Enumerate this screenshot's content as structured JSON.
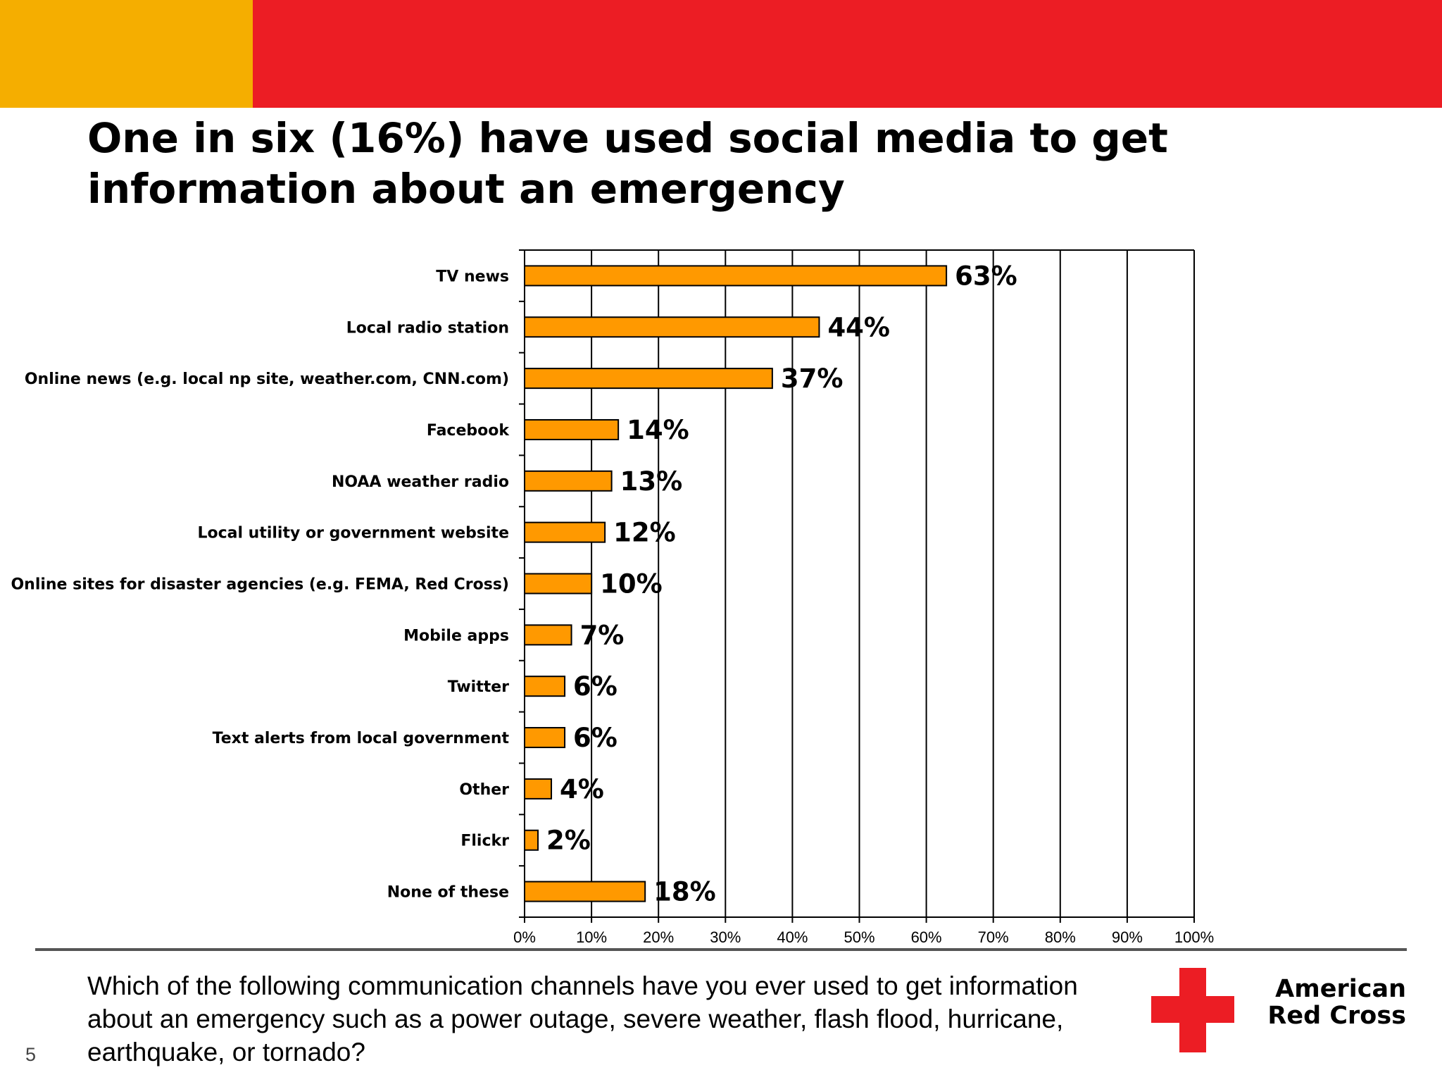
{
  "slide": {
    "title": "One in six (16%) have used social media to get information about an emergency",
    "question": "Which of the following communication channels have you ever used to get information about an emergency such as a power outage, severe weather, flash flood, hurricane, earthquake, or tornado?",
    "page_number": "5",
    "logo_line1": "American",
    "logo_line2": "Red Cross"
  },
  "colors": {
    "bar_fill": "#FF9900",
    "bar_stroke": "#000000",
    "band_yellow": "#F5AE00",
    "band_red": "#EC1D24",
    "cross_red": "#EC1D24"
  },
  "chart_data": {
    "type": "bar",
    "orientation": "horizontal",
    "categories": [
      "TV news",
      "Local radio station",
      "Online news (e.g. local np site, weather.com, CNN.com)",
      "Facebook",
      "NOAA weather radio",
      "Local utility or government website",
      "Online sites for disaster agencies (e.g. FEMA, Red Cross)",
      "Mobile apps",
      "Twitter",
      "Text alerts from local government",
      "Other",
      "Flickr",
      "None of these"
    ],
    "values": [
      63,
      44,
      37,
      14,
      13,
      12,
      10,
      7,
      6,
      6,
      4,
      2,
      18
    ],
    "data_labels": [
      "63%",
      "44%",
      "37%",
      "14%",
      "13%",
      "12%",
      "10%",
      "7%",
      "6%",
      "6%",
      "4%",
      "2%",
      "18%"
    ],
    "x_ticks": [
      "0%",
      "10%",
      "20%",
      "30%",
      "40%",
      "50%",
      "60%",
      "70%",
      "80%",
      "90%",
      "100%"
    ],
    "xlim": [
      0,
      100
    ],
    "grid": "vertical",
    "legend": "none",
    "xlabel": "",
    "ylabel": ""
  }
}
